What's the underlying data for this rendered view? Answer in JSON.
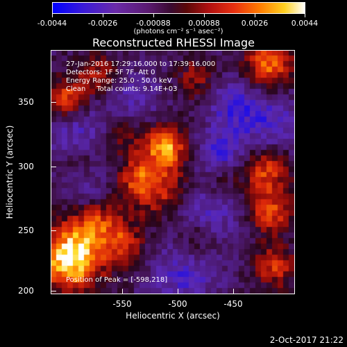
{
  "colorbar": {
    "labels": [
      "-0.0044",
      "-0.0026",
      "-0.00088",
      "0.00088",
      "0.0026",
      "0.0044"
    ],
    "units": "(photons cm⁻² s⁻¹ asec⁻²)",
    "colors": [
      "#0000ff",
      "#6a2aa8",
      "#3a0a30",
      "#b01010",
      "#ff7a00",
      "#ffffff"
    ]
  },
  "title": "Reconstructed RHESSI Image",
  "info": {
    "time": "27-Jan-2016 17:29:16.000 to 17:39:16.000",
    "detectors": "Detectors: 1F 5F 7F, Att 0",
    "energy": "Energy Range: 25.0 - 50.0 keV",
    "clean": "Clean     Total counts: 9.14E+03"
  },
  "peak": "Position of Peak = [-598,218]",
  "axes": {
    "x_ticks": [
      "-550",
      "-500",
      "-450"
    ],
    "y_ticks": [
      "350",
      "300",
      "250",
      "200"
    ],
    "xlabel": "Heliocentric X (arcsec)",
    "ylabel": "Heliocentric Y (arcsec)"
  },
  "timestamp": "2-Oct-2017 21:22"
}
